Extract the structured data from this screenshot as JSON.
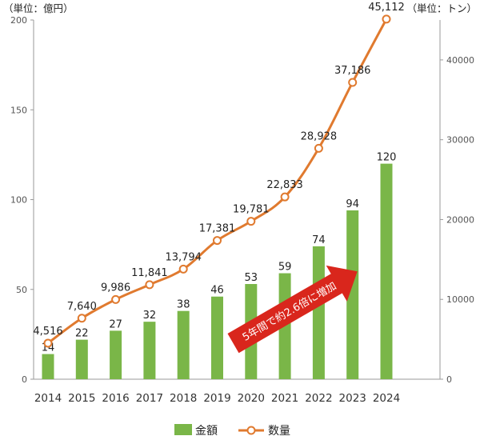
{
  "chart_data": {
    "type": "bar",
    "categories": [
      "2014",
      "2015",
      "2016",
      "2017",
      "2018",
      "2019",
      "2020",
      "2021",
      "2022",
      "2023",
      "2024"
    ],
    "series": [
      {
        "name": "金額",
        "type": "bar",
        "axis": "left",
        "values": [
          14,
          22,
          27,
          32,
          38,
          46,
          53,
          59,
          74,
          94,
          120
        ],
        "labels": [
          "14",
          "22",
          "27",
          "32",
          "38",
          "46",
          "53",
          "59",
          "74",
          "94",
          "120"
        ],
        "color": "#7ab648"
      },
      {
        "name": "数量",
        "type": "line",
        "axis": "right",
        "values": [
          4516,
          7640,
          9986,
          11841,
          13794,
          17381,
          19781,
          22833,
          28928,
          37186,
          45112
        ],
        "labels": [
          "4,516",
          "7,640",
          "9,986",
          "11,841",
          "13,794",
          "17,381",
          "19,781",
          "22,833",
          "28,928",
          "37,186",
          "45,112"
        ],
        "color": "#e07a2f"
      }
    ],
    "left_axis": {
      "unit_label": "（単位：億円）",
      "ylim": [
        0,
        200
      ],
      "ticks": [
        "0",
        "50",
        "100",
        "150",
        "200"
      ]
    },
    "right_axis": {
      "unit_label": "（単位：トン）",
      "ylim": [
        0,
        45000
      ],
      "ticks": [
        "0",
        "10000",
        "20000",
        "30000",
        "40000"
      ]
    },
    "annotation": {
      "text": "5年間で約2.6倍に増加",
      "color": "#d9261c",
      "from": {
        "category": "2019",
        "value": 20
      },
      "to": {
        "category": "2023",
        "value": 60
      }
    },
    "legend": {
      "position": "bottom"
    },
    "grid": false
  }
}
